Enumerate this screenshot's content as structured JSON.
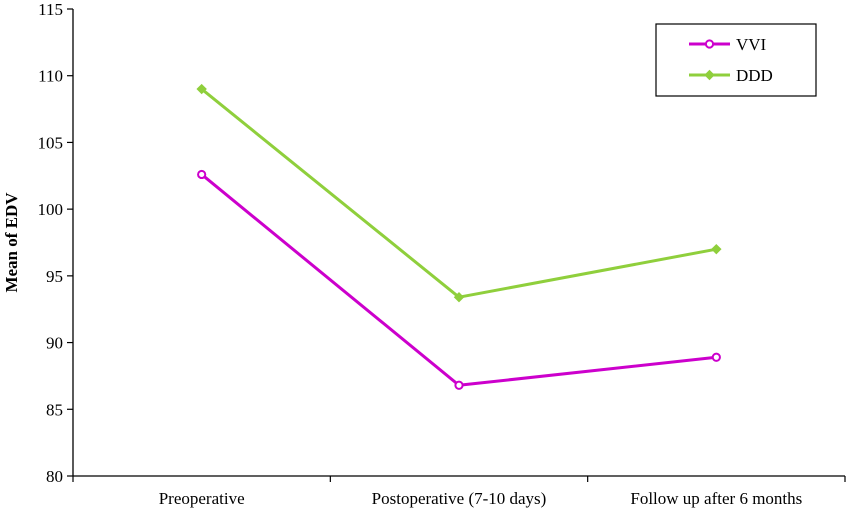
{
  "chart_data": {
    "type": "line",
    "title": "",
    "xlabel": "",
    "ylabel": "Mean of EDV",
    "categories": [
      "Preoperative",
      "Postoperative (7-10 days)",
      "Follow up after 6 months"
    ],
    "ylim": [
      80,
      115
    ],
    "yticks": [
      80,
      85,
      90,
      95,
      100,
      105,
      110,
      115
    ],
    "grid": false,
    "legend_position": "top-right",
    "series": [
      {
        "name": "VVI",
        "color": "#cc00cc",
        "marker": "circle",
        "values": [
          102.6,
          86.8,
          88.9
        ]
      },
      {
        "name": "DDD",
        "color": "#8fcf3c",
        "marker": "diamond",
        "values": [
          109.0,
          93.4,
          97.0
        ]
      }
    ]
  }
}
